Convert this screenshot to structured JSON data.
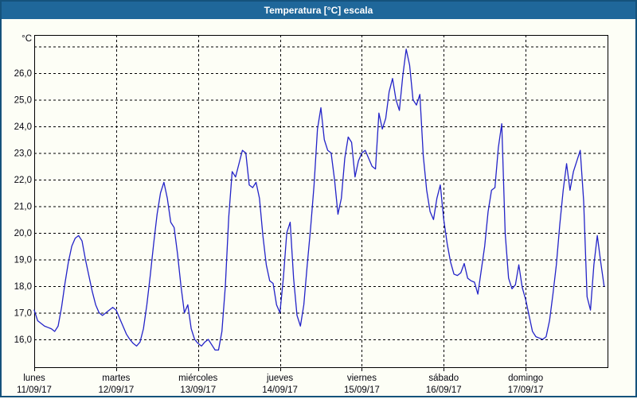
{
  "window": {
    "title": "Temperatura [°C] escala",
    "titlebar_color": "#1f679a",
    "border_color": "#15527c",
    "background_color": "#fdfef6"
  },
  "chart_data": {
    "type": "line",
    "title": "Temperatura [°C] escala",
    "ylabel": "°C",
    "unit": "°C",
    "decimal_separator": ",",
    "ylim": [
      15.0,
      27.45
    ],
    "grid": "dashed",
    "legend": "none",
    "line_color": "#2323c8",
    "axis_color": "#000000",
    "label_color": "#06060f",
    "y_gridlines": [
      16,
      17,
      18,
      19,
      20,
      21,
      22,
      23,
      24,
      25,
      26,
      27
    ],
    "y_ticks": [
      {
        "value": 16,
        "label": "16,0"
      },
      {
        "value": 17,
        "label": "17,0"
      },
      {
        "value": 18,
        "label": "18,0"
      },
      {
        "value": 19,
        "label": "19,0"
      },
      {
        "value": 20,
        "label": "20,0"
      },
      {
        "value": 21,
        "label": "21,0"
      },
      {
        "value": 22,
        "label": "22,0"
      },
      {
        "value": 23,
        "label": "23,0"
      },
      {
        "value": 24,
        "label": "24,0"
      },
      {
        "value": 25,
        "label": "25,0"
      },
      {
        "value": 26,
        "label": "26,0"
      }
    ],
    "days": [
      {
        "name": "lunes",
        "date": "11/09/17"
      },
      {
        "name": "martes",
        "date": "12/09/17"
      },
      {
        "name": "miércoles",
        "date": "13/09/17"
      },
      {
        "name": "jueves",
        "date": "14/09/17"
      },
      {
        "name": "viernes",
        "date": "15/09/17"
      },
      {
        "name": "sábado",
        "date": "16/09/17"
      },
      {
        "name": "domingo",
        "date": "17/09/17"
      }
    ],
    "sampling": "hourly",
    "series": [
      {
        "name": "Temperatura",
        "values_by_day": [
          [
            17.1,
            16.7,
            16.6,
            16.5,
            16.45,
            16.4,
            16.3,
            16.5,
            17.2,
            18.1,
            18.9,
            19.5,
            19.8,
            19.9,
            19.7,
            19.0,
            18.4,
            17.8,
            17.3,
            17.0,
            16.9,
            17.0,
            17.1,
            17.2
          ],
          [
            17.1,
            16.8,
            16.5,
            16.2,
            16.0,
            15.85,
            15.75,
            15.9,
            16.4,
            17.3,
            18.4,
            19.6,
            20.7,
            21.5,
            21.9,
            21.3,
            20.4,
            20.2,
            19.2,
            18.0,
            17.0,
            17.3,
            16.4,
            16.0
          ],
          [
            15.85,
            15.75,
            15.9,
            16.0,
            15.8,
            15.6,
            15.6,
            16.3,
            18.0,
            20.6,
            22.3,
            22.1,
            22.6,
            23.1,
            23.0,
            21.8,
            21.7,
            21.9,
            21.3,
            19.9,
            18.8,
            18.2,
            18.1,
            17.3
          ],
          [
            17.0,
            18.3,
            20.0,
            20.4,
            18.3,
            16.9,
            16.5,
            17.3,
            18.8,
            20.2,
            21.8,
            23.9,
            24.7,
            23.5,
            23.1,
            23.0,
            22.0,
            20.7,
            21.3,
            22.8,
            23.6,
            23.4,
            22.1,
            22.7
          ],
          [
            23.0,
            23.1,
            22.8,
            22.5,
            22.4,
            24.5,
            23.9,
            24.3,
            25.3,
            25.8,
            25.0,
            24.6,
            25.9,
            26.9,
            26.3,
            25.0,
            24.8,
            25.2,
            22.9,
            21.6,
            20.8,
            20.5,
            21.3,
            21.8
          ],
          [
            20.5,
            19.6,
            18.9,
            18.45,
            18.4,
            18.5,
            18.85,
            18.3,
            18.2,
            18.15,
            17.7,
            18.6,
            19.5,
            20.8,
            21.6,
            21.7,
            23.2,
            24.1,
            20.0,
            18.3,
            17.9,
            18.05,
            18.8,
            17.95
          ],
          [
            17.5,
            16.9,
            16.3,
            16.1,
            16.05,
            16.0,
            16.1,
            16.7,
            17.7,
            18.8,
            20.3,
            21.6,
            22.6,
            21.6,
            22.3,
            22.7,
            23.1,
            21.2,
            17.6,
            17.1,
            18.8,
            19.9,
            18.9,
            18.0
          ]
        ]
      }
    ]
  }
}
